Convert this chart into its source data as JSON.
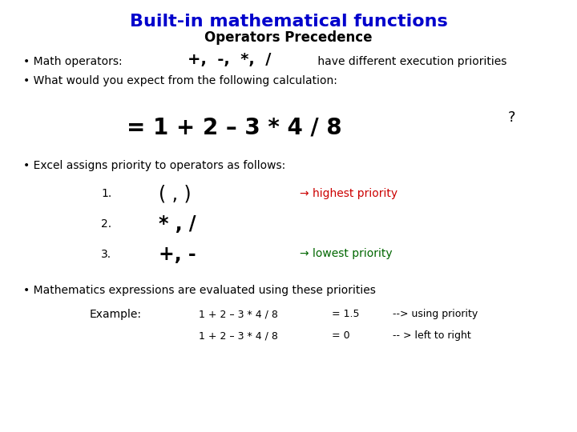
{
  "title": "Built-in mathematical functions",
  "subtitle": "Operators Precedence",
  "title_color": "#0000CC",
  "subtitle_color": "#000000",
  "bg_color": "#FFFFFF",
  "title_fontsize": 16,
  "subtitle_fontsize": 12,
  "body_fontsize": 10,
  "small_fontsize": 9,
  "bullet1_pre": "• Math operators: ",
  "bullet1_ops": "+,  -,  *,  /",
  "bullet1_rest": " have different execution priorities",
  "bullet2": "• What would you expect from the following calculation:",
  "formula": "= 1 + 2 – 3 * 4 / 8",
  "formula_question": "?",
  "bullet3": "• Excel assigns priority to operators as follows:",
  "item1_num": "1.",
  "item1_op": "( , )",
  "item1_arrow": "→ highest priority",
  "item1_arrow_color": "#CC0000",
  "item2_num": "2.",
  "item2_op": "* , /",
  "item3_num": "3.",
  "item3_op": "+, -",
  "item3_arrow": "→ lowest priority",
  "item3_arrow_color": "#006600",
  "bullet4": "• Mathematics expressions are evaluated using these priorities",
  "example_label": "Example:",
  "example_line1a": "1 + 2 – 3 * 4 / 8",
  "example_line1b": "= 1.5",
  "example_line1c": "--> using priority",
  "example_line2a": "1 + 2 – 3 * 4 / 8",
  "example_line2b": "= 0",
  "example_line2c": "-- > left to right"
}
